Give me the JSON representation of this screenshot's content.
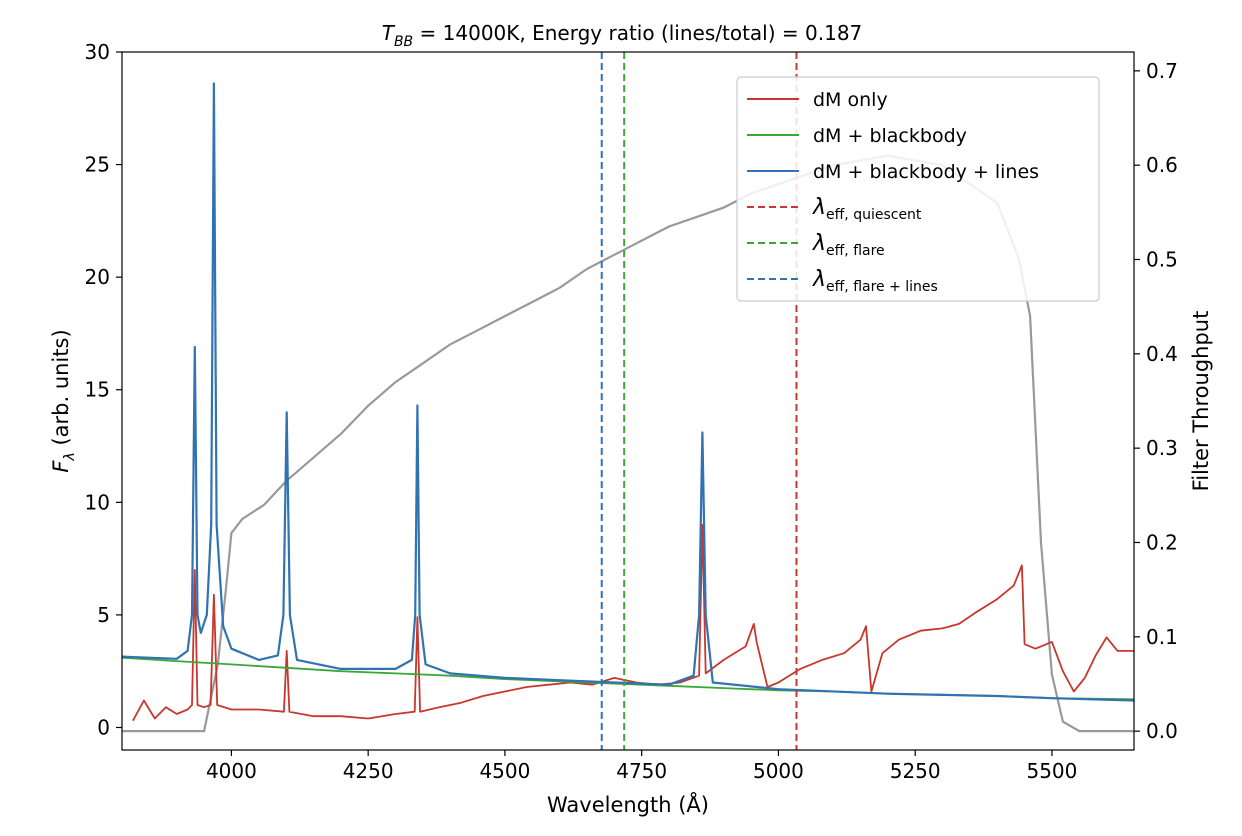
{
  "chart_data": {
    "type": "line",
    "title_prefix": "T",
    "title_sub": "BB",
    "title_rest": " = 14000K, Energy ratio (lines/total) = 0.187",
    "xlabel": "Wavelength (Å)",
    "ylabel_symbol": "F",
    "ylabel_sub": "λ",
    "ylabel_rest": " (arb. units)",
    "y2label": "Filter Throughput",
    "xlim": [
      3800,
      5650
    ],
    "ylim": [
      -1,
      30
    ],
    "y2lim": [
      -0.02,
      0.72
    ],
    "xticks": [
      4000,
      4250,
      4500,
      4750,
      5000,
      5250,
      5500
    ],
    "yticks": [
      0,
      5,
      10,
      15,
      20,
      25,
      30
    ],
    "y2ticks": [
      0.0,
      0.1,
      0.2,
      0.3,
      0.4,
      0.5,
      0.6,
      0.7
    ],
    "colors": {
      "red": "#c8372d",
      "green": "#3aa73a",
      "blue": "#3173b2",
      "gray": "#999999"
    },
    "filter_throughput": {
      "color": "#999999",
      "points": [
        [
          3800,
          0.0
        ],
        [
          3950,
          0.0
        ],
        [
          3975,
          0.07
        ],
        [
          3990,
          0.15
        ],
        [
          4000,
          0.21
        ],
        [
          4020,
          0.225
        ],
        [
          4060,
          0.24
        ],
        [
          4100,
          0.265
        ],
        [
          4150,
          0.29
        ],
        [
          4200,
          0.315
        ],
        [
          4250,
          0.345
        ],
        [
          4300,
          0.37
        ],
        [
          4350,
          0.39
        ],
        [
          4400,
          0.41
        ],
        [
          4450,
          0.425
        ],
        [
          4500,
          0.44
        ],
        [
          4550,
          0.455
        ],
        [
          4600,
          0.47
        ],
        [
          4650,
          0.49
        ],
        [
          4700,
          0.505
        ],
        [
          4750,
          0.52
        ],
        [
          4800,
          0.535
        ],
        [
          4850,
          0.545
        ],
        [
          4900,
          0.555
        ],
        [
          4950,
          0.57
        ],
        [
          5000,
          0.58
        ],
        [
          5100,
          0.6
        ],
        [
          5200,
          0.61
        ],
        [
          5300,
          0.6
        ],
        [
          5400,
          0.56
        ],
        [
          5440,
          0.5
        ],
        [
          5460,
          0.44
        ],
        [
          5480,
          0.2
        ],
        [
          5500,
          0.06
        ],
        [
          5520,
          0.01
        ],
        [
          5550,
          0.0
        ],
        [
          5650,
          0.0
        ]
      ]
    },
    "series": [
      {
        "name": "dM only",
        "color": "#c8372d",
        "points": [
          [
            3820,
            0.3
          ],
          [
            3840,
            1.2
          ],
          [
            3860,
            0.4
          ],
          [
            3880,
            0.9
          ],
          [
            3900,
            0.6
          ],
          [
            3920,
            0.8
          ],
          [
            3928,
            1.0
          ],
          [
            3933,
            7.0
          ],
          [
            3938,
            1.0
          ],
          [
            3950,
            0.9
          ],
          [
            3962,
            1.0
          ],
          [
            3968,
            5.9
          ],
          [
            3974,
            1.0
          ],
          [
            4000,
            0.8
          ],
          [
            4050,
            0.8
          ],
          [
            4096,
            0.7
          ],
          [
            4101,
            3.4
          ],
          [
            4106,
            0.7
          ],
          [
            4150,
            0.5
          ],
          [
            4200,
            0.5
          ],
          [
            4250,
            0.4
          ],
          [
            4300,
            0.6
          ],
          [
            4335,
            0.7
          ],
          [
            4340,
            4.9
          ],
          [
            4345,
            0.7
          ],
          [
            4380,
            0.9
          ],
          [
            4420,
            1.1
          ],
          [
            4460,
            1.4
          ],
          [
            4500,
            1.6
          ],
          [
            4540,
            1.8
          ],
          [
            4580,
            1.9
          ],
          [
            4620,
            2.0
          ],
          [
            4660,
            1.9
          ],
          [
            4700,
            2.2
          ],
          [
            4740,
            2.0
          ],
          [
            4780,
            1.9
          ],
          [
            4820,
            2.0
          ],
          [
            4855,
            2.3
          ],
          [
            4861,
            9.0
          ],
          [
            4867,
            2.4
          ],
          [
            4900,
            3.0
          ],
          [
            4940,
            3.6
          ],
          [
            4955,
            4.6
          ],
          [
            4960,
            3.8
          ],
          [
            4980,
            1.8
          ],
          [
            5000,
            2.0
          ],
          [
            5040,
            2.6
          ],
          [
            5080,
            3.0
          ],
          [
            5120,
            3.3
          ],
          [
            5150,
            3.9
          ],
          [
            5160,
            4.5
          ],
          [
            5170,
            1.6
          ],
          [
            5190,
            3.3
          ],
          [
            5220,
            3.9
          ],
          [
            5260,
            4.3
          ],
          [
            5300,
            4.4
          ],
          [
            5330,
            4.6
          ],
          [
            5360,
            5.1
          ],
          [
            5400,
            5.7
          ],
          [
            5430,
            6.3
          ],
          [
            5445,
            7.2
          ],
          [
            5450,
            3.7
          ],
          [
            5470,
            3.5
          ],
          [
            5500,
            3.8
          ],
          [
            5520,
            2.5
          ],
          [
            5540,
            1.6
          ],
          [
            5560,
            2.2
          ],
          [
            5580,
            3.2
          ],
          [
            5600,
            4.0
          ],
          [
            5620,
            3.4
          ],
          [
            5650,
            3.4
          ]
        ]
      },
      {
        "name": "dM + blackbody",
        "color": "#3aa73a",
        "points": [
          [
            3800,
            3.1
          ],
          [
            3900,
            2.95
          ],
          [
            4000,
            2.8
          ],
          [
            4100,
            2.65
          ],
          [
            4200,
            2.5
          ],
          [
            4300,
            2.4
          ],
          [
            4400,
            2.3
          ],
          [
            4500,
            2.15
          ],
          [
            4600,
            2.05
          ],
          [
            4700,
            1.95
          ],
          [
            4800,
            1.85
          ],
          [
            4900,
            1.75
          ],
          [
            5000,
            1.65
          ],
          [
            5100,
            1.6
          ],
          [
            5200,
            1.5
          ],
          [
            5300,
            1.45
          ],
          [
            5400,
            1.4
          ],
          [
            5500,
            1.3
          ],
          [
            5650,
            1.25
          ]
        ]
      },
      {
        "name": "dM + blackbody + lines",
        "color": "#3173b2",
        "points": [
          [
            3800,
            3.15
          ],
          [
            3900,
            3.05
          ],
          [
            3920,
            3.4
          ],
          [
            3928,
            5.0
          ],
          [
            3933,
            16.9
          ],
          [
            3938,
            5.0
          ],
          [
            3944,
            4.2
          ],
          [
            3955,
            5.0
          ],
          [
            3963,
            9.0
          ],
          [
            3968,
            28.6
          ],
          [
            3973,
            9.0
          ],
          [
            3985,
            4.5
          ],
          [
            4000,
            3.5
          ],
          [
            4050,
            3.0
          ],
          [
            4085,
            3.2
          ],
          [
            4095,
            5.0
          ],
          [
            4101,
            14.0
          ],
          [
            4107,
            5.0
          ],
          [
            4120,
            3.0
          ],
          [
            4200,
            2.6
          ],
          [
            4300,
            2.6
          ],
          [
            4330,
            3.0
          ],
          [
            4336,
            5.0
          ],
          [
            4340,
            14.3
          ],
          [
            4344,
            5.0
          ],
          [
            4355,
            2.8
          ],
          [
            4400,
            2.4
          ],
          [
            4500,
            2.2
          ],
          [
            4600,
            2.1
          ],
          [
            4700,
            2.0
          ],
          [
            4800,
            1.9
          ],
          [
            4845,
            2.3
          ],
          [
            4855,
            5.0
          ],
          [
            4861,
            13.1
          ],
          [
            4867,
            5.0
          ],
          [
            4880,
            2.0
          ],
          [
            5000,
            1.7
          ],
          [
            5200,
            1.5
          ],
          [
            5400,
            1.4
          ],
          [
            5500,
            1.3
          ],
          [
            5650,
            1.2
          ]
        ]
      }
    ],
    "vlines": [
      {
        "name": "λ eff, quiescent",
        "x": 5033,
        "color": "#c8372d",
        "style": "dashed"
      },
      {
        "name": "λ eff, flare",
        "x": 4718,
        "color": "#3aa73a",
        "style": "dashed"
      },
      {
        "name": "λ eff, flare+lines",
        "x": 4677,
        "color": "#3173b2",
        "style": "dashed"
      }
    ],
    "legend": {
      "position": "top-right",
      "entries": [
        {
          "label": "dM only",
          "color": "#c8372d",
          "style": "solid",
          "main": "dM only",
          "sub": ""
        },
        {
          "label": "dM + blackbody",
          "color": "#3aa73a",
          "style": "solid",
          "main": "dM + blackbody",
          "sub": ""
        },
        {
          "label": "dM + blackbody + lines",
          "color": "#3173b2",
          "style": "solid",
          "main": "dM + blackbody + lines",
          "sub": ""
        },
        {
          "label": "λeff, quiescent",
          "color": "#c8372d",
          "style": "dashed",
          "main": "λ",
          "sub": "eff, quiescent"
        },
        {
          "label": "λeff, flare",
          "color": "#3aa73a",
          "style": "dashed",
          "main": "λ",
          "sub": "eff, flare"
        },
        {
          "label": "λeff, flare + lines",
          "color": "#3173b2",
          "style": "dashed",
          "main": "λ",
          "sub": "eff, flare + lines"
        }
      ]
    }
  }
}
